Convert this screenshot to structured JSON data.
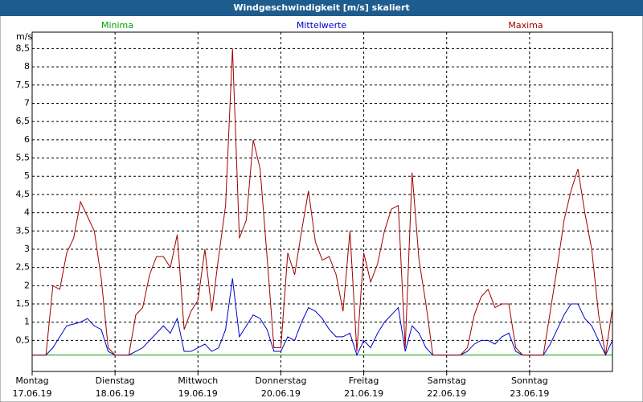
{
  "chart_data": {
    "type": "line",
    "title": "Windgeschwindigkeit [m/s] skaliert",
    "ylabel": "m/s",
    "x": [
      0,
      2,
      4,
      6,
      8,
      10,
      12,
      14,
      16,
      18,
      20,
      22,
      24,
      26,
      28,
      30,
      32,
      34,
      36,
      38,
      40,
      42,
      44,
      46,
      48,
      50,
      52,
      54,
      56,
      58,
      60,
      62,
      64,
      66,
      68,
      70,
      72,
      74,
      76,
      78,
      80,
      82,
      84,
      86,
      88,
      90,
      92,
      94,
      96,
      98,
      100,
      102,
      104,
      106,
      108,
      110,
      112,
      114,
      116,
      118,
      120,
      122,
      124,
      126,
      128,
      130,
      132,
      134,
      136,
      138,
      140,
      142,
      144,
      146,
      148,
      150,
      152,
      154,
      156,
      158,
      160,
      162,
      164,
      166,
      168
    ],
    "xlim": [
      0,
      168
    ],
    "xticks": [
      {
        "value": 0,
        "label": [
          "Montag",
          "17.06.19"
        ]
      },
      {
        "value": 24,
        "label": [
          "Dienstag",
          "18.06.19"
        ]
      },
      {
        "value": 48,
        "label": [
          "Mittwoch",
          "19.06.19"
        ]
      },
      {
        "value": 72,
        "label": [
          "Donnerstag",
          "20.06.19"
        ]
      },
      {
        "value": 96,
        "label": [
          "Freitag",
          "21.06.19"
        ]
      },
      {
        "value": 120,
        "label": [
          "Samstag",
          "22.06.19"
        ]
      },
      {
        "value": 144,
        "label": [
          "Sonntag",
          "23.06.19"
        ]
      }
    ],
    "ylim": [
      -0.35,
      8.95
    ],
    "yticks": [
      {
        "value": 0.5,
        "label": "0,5"
      },
      1,
      {
        "value": 1.5,
        "label": "1,5"
      },
      2,
      {
        "value": 2.5,
        "label": "2,5"
      },
      3,
      {
        "value": 3.5,
        "label": "3,5"
      },
      4,
      {
        "value": 4.5,
        "label": "4,5"
      },
      5,
      {
        "value": 5.5,
        "label": "5,5"
      },
      6,
      {
        "value": 6.5,
        "label": "6,5"
      },
      7,
      {
        "value": 7.5,
        "label": "7,5"
      },
      8,
      {
        "value": 8.5,
        "label": "8,5"
      }
    ],
    "grid": true,
    "series": [
      {
        "name": "Minima",
        "color": "#00a000",
        "values": [
          0.1,
          0.1,
          0.1,
          0.1,
          0.1,
          0.1,
          0.1,
          0.1,
          0.1,
          0.1,
          0.1,
          0.1,
          0.1,
          0.1,
          0.1,
          0.1,
          0.1,
          0.1,
          0.1,
          0.1,
          0.1,
          0.1,
          0.1,
          0.1,
          0.1,
          0.1,
          0.1,
          0.1,
          0.1,
          0.1,
          0.1,
          0.1,
          0.1,
          0.1,
          0.1,
          0.1,
          0.1,
          0.1,
          0.1,
          0.1,
          0.1,
          0.1,
          0.1,
          0.1,
          0.1,
          0.1,
          0.1,
          0.1,
          0.1,
          0.1,
          0.1,
          0.1,
          0.1,
          0.1,
          0.1,
          0.1,
          0.1,
          0.1,
          0.1,
          0.1,
          0.1,
          0.1,
          0.1,
          0.1,
          0.1,
          0.1,
          0.1,
          0.1,
          0.1,
          0.1,
          0.1,
          0.1,
          0.1,
          0.1,
          0.1,
          0.1,
          0.1,
          0.1,
          0.1,
          0.1,
          0.1,
          0.1,
          0.1,
          0.1,
          0.1
        ]
      },
      {
        "name": "Mittelwerte",
        "color": "#0000c8",
        "values": [
          0.1,
          0.1,
          0.1,
          0.3,
          0.6,
          0.9,
          0.95,
          1.0,
          1.1,
          0.9,
          0.8,
          0.2,
          0.1,
          0.1,
          0.1,
          0.2,
          0.3,
          0.5,
          0.7,
          0.9,
          0.7,
          1.1,
          0.2,
          0.2,
          0.3,
          0.4,
          0.2,
          0.3,
          0.8,
          2.2,
          0.6,
          0.9,
          1.2,
          1.1,
          0.8,
          0.2,
          0.2,
          0.6,
          0.5,
          1.0,
          1.4,
          1.3,
          1.1,
          0.8,
          0.6,
          0.6,
          0.7,
          0.1,
          0.5,
          0.3,
          0.7,
          1.0,
          1.2,
          1.4,
          0.2,
          0.9,
          0.7,
          0.3,
          0.1,
          0.1,
          0.1,
          0.1,
          0.1,
          0.2,
          0.4,
          0.5,
          0.5,
          0.4,
          0.6,
          0.7,
          0.2,
          0.1,
          0.1,
          0.1,
          0.1,
          0.4,
          0.8,
          1.2,
          1.5,
          1.5,
          1.1,
          0.9,
          0.5,
          0.1,
          0.5
        ]
      },
      {
        "name": "Maxima",
        "color": "#a00000",
        "values": [
          0.1,
          0.1,
          0.1,
          2.0,
          1.9,
          2.9,
          3.3,
          4.3,
          3.9,
          3.5,
          2.2,
          0.3,
          0.1,
          0.1,
          0.1,
          1.2,
          1.4,
          2.3,
          2.8,
          2.8,
          2.5,
          3.4,
          0.8,
          1.3,
          1.6,
          3.0,
          1.3,
          2.8,
          4.2,
          8.5,
          3.3,
          3.8,
          6.0,
          5.2,
          2.8,
          0.3,
          0.3,
          2.9,
          2.3,
          3.5,
          4.6,
          3.2,
          2.7,
          2.8,
          2.3,
          1.3,
          3.5,
          0.2,
          2.9,
          2.1,
          2.6,
          3.5,
          4.1,
          4.2,
          0.3,
          5.1,
          2.7,
          1.5,
          0.1,
          0.1,
          0.1,
          0.1,
          0.1,
          0.3,
          1.2,
          1.7,
          1.9,
          1.4,
          1.5,
          1.5,
          0.3,
          0.1,
          0.1,
          0.1,
          0.1,
          1.3,
          2.5,
          3.8,
          4.6,
          5.2,
          4.0,
          3.0,
          1.2,
          0.1,
          1.4
        ]
      }
    ]
  }
}
